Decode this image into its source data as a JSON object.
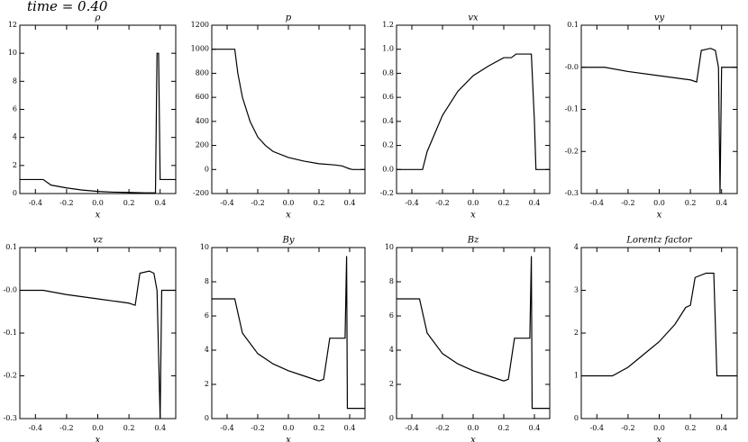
{
  "title": "time =  0.40",
  "chart_data": [
    {
      "type": "line",
      "title": "ρ",
      "xlabel": "x",
      "color": "#000",
      "x": [
        -0.5,
        -0.35,
        -0.3,
        -0.2,
        -0.1,
        0,
        0.1,
        0.2,
        0.3,
        0.37,
        0.38,
        0.39,
        0.4,
        0.5
      ],
      "values": [
        1,
        1,
        0.6,
        0.4,
        0.25,
        0.15,
        0.1,
        0.08,
        0.05,
        0.05,
        10,
        10,
        1,
        1
      ],
      "xlim": [
        -0.5,
        0.5
      ],
      "xticks": [
        -0.4,
        -0.2,
        {
          "value": 0,
          "label": "0.0"
        },
        0.2,
        0.4
      ],
      "ylim": [
        0,
        12
      ],
      "yticks": [
        0,
        2,
        4,
        6,
        8,
        10,
        12
      ]
    },
    {
      "type": "line",
      "title": "p",
      "xlabel": "x",
      "color": "#000",
      "x": [
        -0.5,
        -0.35,
        -0.33,
        -0.3,
        -0.25,
        -0.2,
        -0.15,
        -0.1,
        0,
        0.1,
        0.2,
        0.3,
        0.35,
        0.4,
        0.42,
        0.5
      ],
      "values": [
        1000,
        1000,
        800,
        600,
        400,
        270,
        200,
        150,
        100,
        70,
        48,
        38,
        30,
        5,
        0,
        0
      ],
      "xlim": [
        -0.5,
        0.5
      ],
      "xticks": [
        -0.4,
        -0.2,
        {
          "value": 0,
          "label": "0.0"
        },
        0.2,
        0.4
      ],
      "ylim": [
        -200,
        1200
      ],
      "yticks": [
        -200,
        0,
        200,
        400,
        600,
        800,
        1000,
        1200
      ]
    },
    {
      "type": "line",
      "title": "vx",
      "xlabel": "x",
      "color": "#000",
      "x": [
        -0.5,
        -0.33,
        -0.3,
        -0.2,
        -0.1,
        0,
        0.1,
        0.2,
        0.25,
        0.28,
        0.38,
        0.4,
        0.41,
        0.5
      ],
      "values": [
        0,
        0,
        0.15,
        0.45,
        0.65,
        0.78,
        0.86,
        0.93,
        0.93,
        0.96,
        0.96,
        0.4,
        0,
        0
      ],
      "xlim": [
        -0.5,
        0.5
      ],
      "xticks": [
        -0.4,
        -0.2,
        {
          "value": 0,
          "label": "0.0"
        },
        0.2,
        0.4
      ],
      "ylim": [
        -0.2,
        1.2
      ],
      "yticks": [
        -0.2,
        {
          "value": 0,
          "label": "0.0"
        },
        0.2,
        0.4,
        0.6,
        0.8,
        {
          "value": 1,
          "label": "1.0"
        },
        1.2
      ]
    },
    {
      "type": "line",
      "title": "vy",
      "xlabel": "x",
      "color": "#000",
      "x": [
        -0.5,
        -0.35,
        -0.2,
        0,
        0.2,
        0.24,
        0.27,
        0.33,
        0.36,
        0.38,
        0.39,
        0.4,
        0.5
      ],
      "values": [
        0,
        0,
        -0.01,
        -0.02,
        -0.03,
        -0.035,
        0.04,
        0.045,
        0.04,
        0,
        -0.3,
        0,
        0
      ],
      "xlim": [
        -0.5,
        0.5
      ],
      "xticks": [
        -0.4,
        -0.2,
        {
          "value": 0,
          "label": "0.0"
        },
        0.2,
        0.4
      ],
      "ylim": [
        -0.3,
        0.1
      ],
      "yticks": [
        -0.3,
        -0.2,
        -0.1,
        {
          "value": 0,
          "label": "-0.0"
        },
        0.1
      ]
    },
    {
      "type": "line",
      "title": "vz",
      "xlabel": "x",
      "color": "#000",
      "x": [
        -0.5,
        -0.35,
        -0.2,
        0,
        0.2,
        0.24,
        0.27,
        0.33,
        0.36,
        0.38,
        0.4,
        0.41,
        0.5
      ],
      "values": [
        0,
        0,
        -0.01,
        -0.02,
        -0.03,
        -0.035,
        0.04,
        0.045,
        0.04,
        0,
        -0.3,
        0,
        0
      ],
      "xlim": [
        -0.5,
        0.5
      ],
      "xticks": [
        -0.4,
        -0.2,
        {
          "value": 0,
          "label": "0.0"
        },
        0.2,
        0.4
      ],
      "ylim": [
        -0.3,
        0.1
      ],
      "yticks": [
        -0.3,
        -0.2,
        -0.1,
        {
          "value": 0,
          "label": "-0.0"
        },
        0.1
      ]
    },
    {
      "type": "line",
      "title": "By",
      "xlabel": "x",
      "color": "#000",
      "x": [
        -0.5,
        -0.35,
        -0.3,
        -0.2,
        -0.1,
        0,
        0.1,
        0.2,
        0.23,
        0.27,
        0.37,
        0.38,
        0.385,
        0.45,
        0.5
      ],
      "values": [
        7,
        7,
        5,
        3.8,
        3.2,
        2.8,
        2.5,
        2.2,
        2.3,
        4.7,
        4.7,
        9.5,
        0.6,
        0.6,
        0.6
      ],
      "xlim": [
        -0.5,
        0.5
      ],
      "xticks": [
        -0.4,
        -0.2,
        {
          "value": 0,
          "label": "0.0"
        },
        0.2,
        0.4
      ],
      "ylim": [
        0,
        10
      ],
      "yticks": [
        0,
        2,
        4,
        6,
        8,
        10
      ]
    },
    {
      "type": "line",
      "title": "Bz",
      "xlabel": "x",
      "color": "#000",
      "x": [
        -0.5,
        -0.35,
        -0.3,
        -0.2,
        -0.1,
        0,
        0.1,
        0.2,
        0.23,
        0.27,
        0.37,
        0.38,
        0.385,
        0.45,
        0.5
      ],
      "values": [
        7,
        7,
        5,
        3.8,
        3.2,
        2.8,
        2.5,
        2.2,
        2.3,
        4.7,
        4.7,
        9.5,
        0.6,
        0.6,
        0.6
      ],
      "xlim": [
        -0.5,
        0.5
      ],
      "xticks": [
        -0.4,
        -0.2,
        {
          "value": 0,
          "label": "0.0"
        },
        0.2,
        0.4
      ],
      "ylim": [
        0,
        10
      ],
      "yticks": [
        0,
        2,
        4,
        6,
        8,
        10
      ]
    },
    {
      "type": "line",
      "title": "Lorentz factor",
      "xlabel": "x",
      "color": "#000",
      "x": [
        -0.5,
        -0.3,
        -0.2,
        -0.1,
        0,
        0.1,
        0.17,
        0.2,
        0.23,
        0.3,
        0.35,
        0.37,
        0.5
      ],
      "values": [
        1,
        1,
        1.2,
        1.5,
        1.8,
        2.2,
        2.6,
        2.65,
        3.3,
        3.4,
        3.4,
        1,
        1
      ],
      "xlim": [
        -0.5,
        0.5
      ],
      "xticks": [
        -0.4,
        -0.2,
        {
          "value": 0,
          "label": "0.0"
        },
        0.2,
        0.4
      ],
      "ylim": [
        0,
        4
      ],
      "yticks": [
        0,
        1,
        2,
        3,
        4
      ]
    }
  ]
}
